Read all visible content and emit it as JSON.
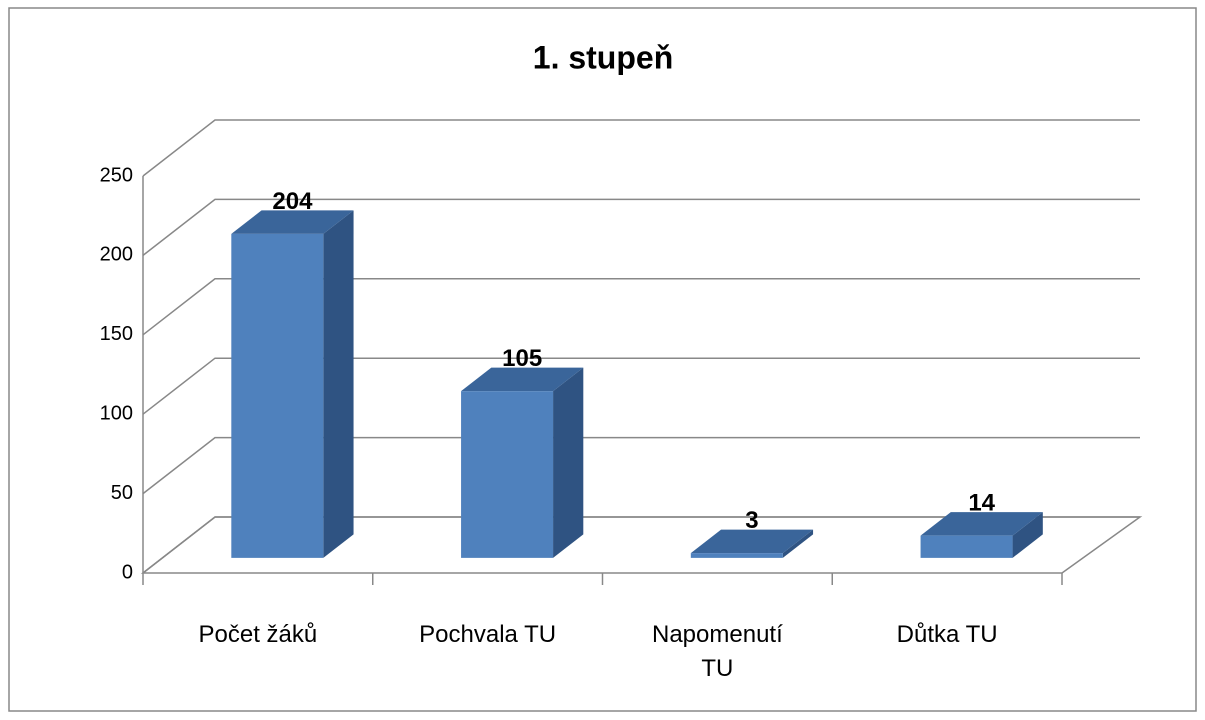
{
  "chart_data": {
    "type": "bar3d",
    "title": "1. stupeň",
    "categories": [
      "Počet žáků",
      "Pochvala TU",
      "Napomenutí TU",
      "Důtka TU"
    ],
    "values": [
      204,
      105,
      3,
      14
    ],
    "color": "#4f81bd",
    "ylim": [
      0,
      250
    ],
    "yticks": [
      0,
      50,
      100,
      150,
      200,
      250
    ],
    "grid": true
  }
}
